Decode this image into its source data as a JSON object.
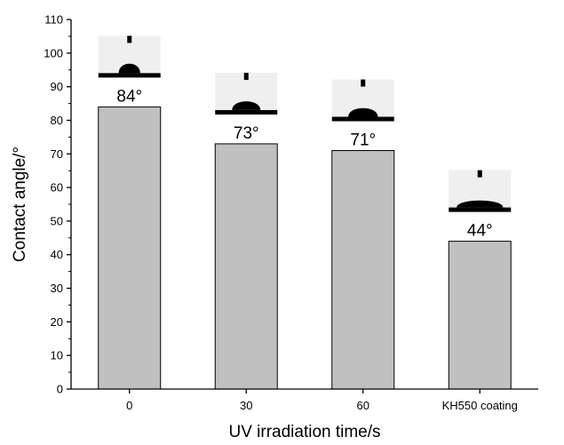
{
  "chart_data": {
    "type": "bar",
    "categories": [
      "0",
      "30",
      "60",
      "KH550 coating"
    ],
    "values": [
      84,
      73,
      71,
      44
    ],
    "data_labels": [
      "84°",
      "73°",
      "71°",
      "44°"
    ],
    "xlabel": "UV irradiation time/s",
    "ylabel": "Contact angle/°",
    "ylim": [
      0,
      110
    ],
    "yticks": [
      0,
      10,
      20,
      30,
      40,
      50,
      60,
      70,
      80,
      90,
      100,
      110
    ],
    "grid": false,
    "legend": "none",
    "bar_color": "#c0c0c0",
    "bar_edge_color": "#000000",
    "inset_images": [
      "water-droplet-photo",
      "water-droplet-photo",
      "water-droplet-photo",
      "water-droplet-photo"
    ]
  }
}
